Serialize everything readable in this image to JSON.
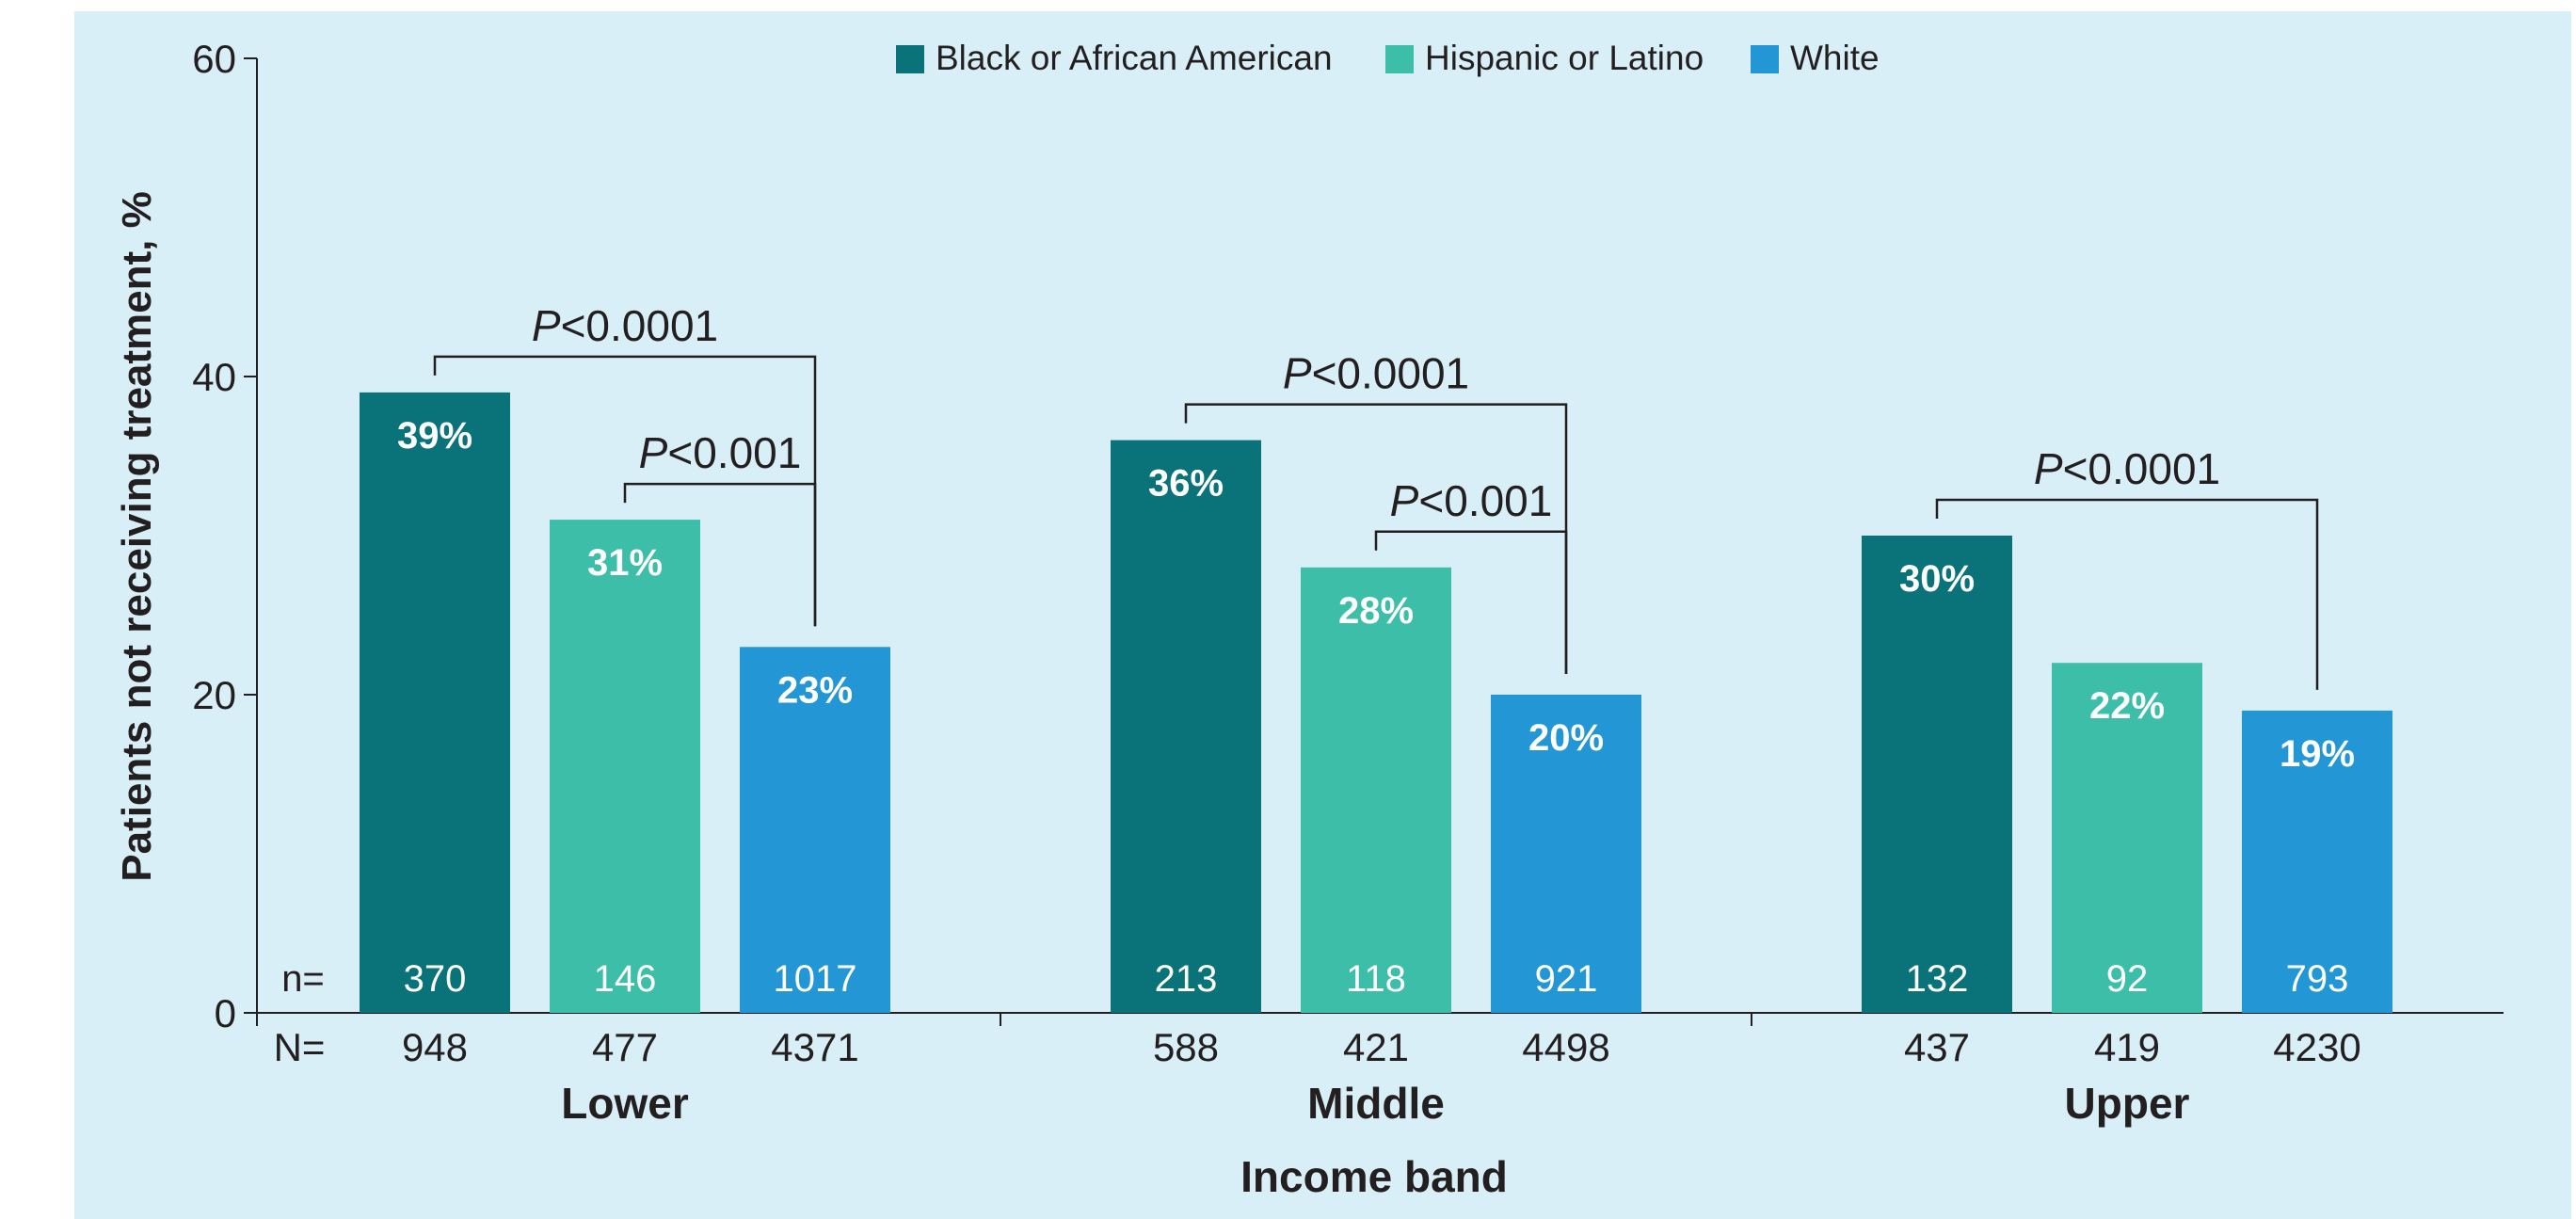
{
  "chart_data": {
    "type": "bar",
    "ylabel": "Patients not receiving treatment, %",
    "xlabel": "Income band",
    "ylim": [
      0,
      60
    ],
    "yticks": [
      0,
      20,
      40,
      60
    ],
    "grid": false,
    "legend_placement": "top-center",
    "categories": [
      "Lower",
      "Middle",
      "Upper"
    ],
    "series": [
      {
        "name": "Black or African American",
        "color": "#0a737a",
        "values": [
          39,
          36,
          30
        ],
        "labels": [
          "39%",
          "36%",
          "30%"
        ],
        "n": [
          "370",
          "213",
          "132"
        ],
        "N": [
          "948",
          "588",
          "437"
        ]
      },
      {
        "name": "Hispanic or Latino",
        "color": "#3dbea9",
        "values": [
          31,
          28,
          22
        ],
        "labels": [
          "31%",
          "28%",
          "22%"
        ],
        "n": [
          "146",
          "118",
          "92"
        ],
        "N": [
          "477",
          "421",
          "419"
        ]
      },
      {
        "name": "White",
        "color": "#2396d6",
        "values": [
          23,
          20,
          19
        ],
        "labels": [
          "23%",
          "20%",
          "19%"
        ],
        "n": [
          "1017",
          "921",
          "793"
        ],
        "N": [
          "4371",
          "4498",
          "4230"
        ]
      }
    ],
    "n_label": "n=",
    "N_label": "N=",
    "significance": [
      {
        "category": 0,
        "from": 0,
        "to": 2,
        "p_italic": "P",
        "p_value": "<0.0001"
      },
      {
        "category": 0,
        "from": 1,
        "to": 2,
        "p_italic": "P",
        "p_value": "<0.001"
      },
      {
        "category": 1,
        "from": 0,
        "to": 2,
        "p_italic": "P",
        "p_value": "<0.0001"
      },
      {
        "category": 1,
        "from": 1,
        "to": 2,
        "p_italic": "P",
        "p_value": "<0.001"
      },
      {
        "category": 2,
        "from": 0,
        "to": 2,
        "p_italic": "P",
        "p_value": "<0.0001"
      }
    ]
  }
}
